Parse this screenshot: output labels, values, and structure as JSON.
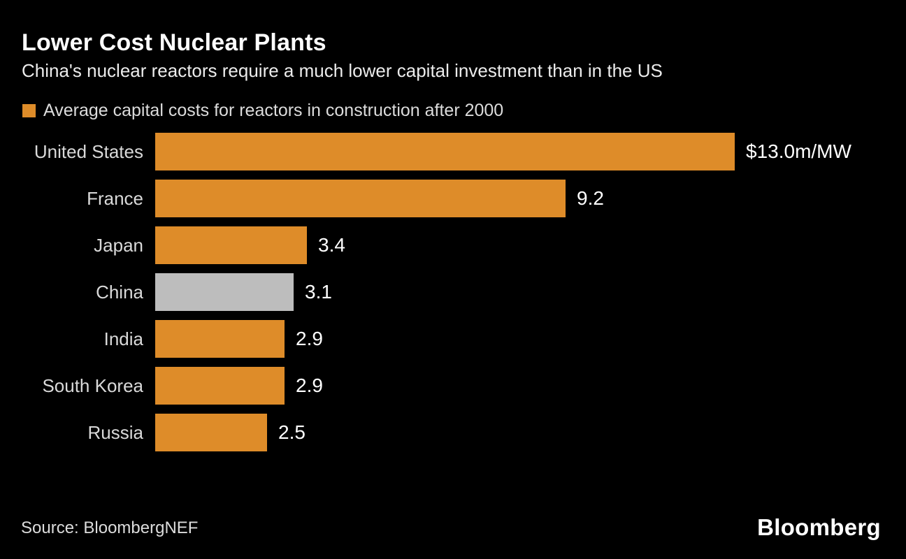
{
  "colors": {
    "background": "#000000",
    "bar_orange": "#DE8C29",
    "bar_gray_highlight": "#BDBDBD",
    "title_text": "#FFFFFF",
    "body_text": "#D9D9D9",
    "value_text": "#FFFFFF"
  },
  "chart_data": {
    "type": "bar",
    "orientation": "horizontal",
    "title": "Lower Cost Nuclear Plants",
    "subtitle": "China's nuclear reactors require a much lower capital investment than in the US",
    "legend": "Average capital costs for reactors in construction after 2000",
    "unit": "$m/MW",
    "xlim": [
      0,
      13.0
    ],
    "grid": false,
    "legend_position": "top-left",
    "categories": [
      "United States",
      "France",
      "Japan",
      "China",
      "India",
      "South Korea",
      "Russia"
    ],
    "values": [
      13.0,
      9.2,
      3.4,
      3.1,
      2.9,
      2.9,
      2.5
    ],
    "value_labels": [
      "$13.0m/MW",
      "9.2",
      "3.4",
      "3.1",
      "2.9",
      "2.9",
      "2.5"
    ],
    "bar_colors": [
      "#DE8C29",
      "#DE8C29",
      "#DE8C29",
      "#BDBDBD",
      "#DE8C29",
      "#DE8C29",
      "#DE8C29"
    ],
    "highlighted_category": "China"
  },
  "footer": {
    "source": "Source: BloombergNEF",
    "brand": "Bloomberg"
  }
}
